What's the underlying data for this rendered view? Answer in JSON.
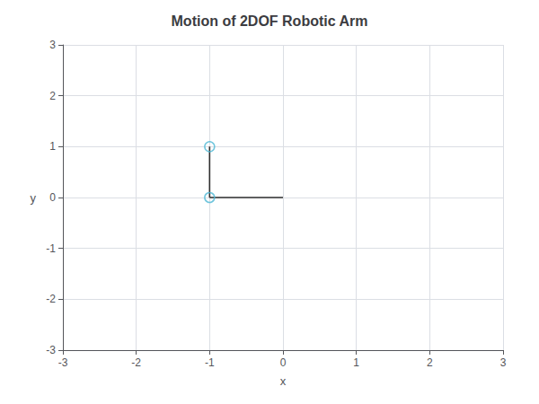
{
  "chart_data": {
    "type": "line",
    "title": "Motion of 2DOF Robotic Arm",
    "x_label": "x",
    "y_label": "y",
    "xlim": [
      -3,
      3
    ],
    "ylim": [
      -3,
      3
    ],
    "xticks": [
      -3,
      -2,
      -1,
      0,
      1,
      2,
      3
    ],
    "yticks": [
      -3,
      -2,
      -1,
      0,
      1,
      2,
      3
    ],
    "grid": true,
    "series": [
      {
        "type": "line",
        "color": "#2f2f2f",
        "line_style": "solid",
        "x": [
          0,
          -1
        ],
        "y": [
          0,
          0
        ]
      },
      {
        "type": "line",
        "color": "#2f2f2f",
        "line_style": "solid",
        "x": [
          -1,
          -1
        ],
        "y": [
          0,
          1
        ]
      },
      {
        "type": "scatter",
        "color": "#4db8d4",
        "marker": "open_circle",
        "x": [
          -1,
          -1
        ],
        "y": [
          0,
          1
        ]
      }
    ]
  }
}
